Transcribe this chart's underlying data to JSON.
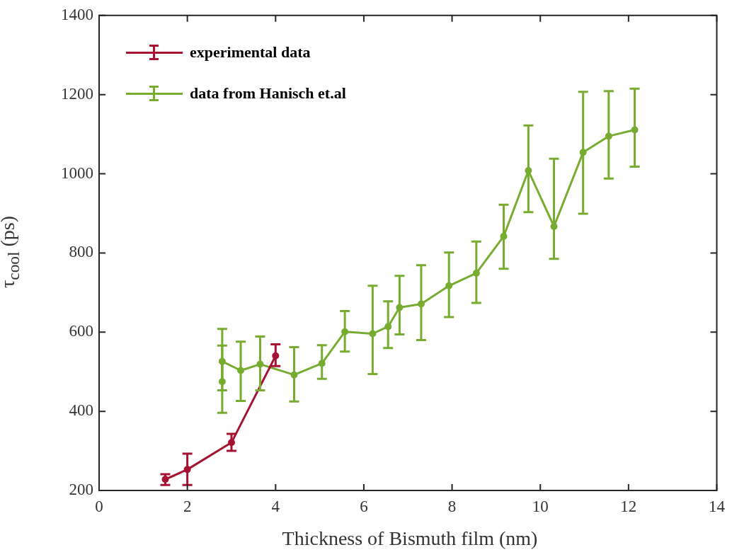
{
  "chart_data": {
    "type": "line",
    "xlabel": "Thickness of Bismuth film (nm)",
    "ylabel": "τ$_{cool}$ (ps)",
    "xlim": [
      0,
      14
    ],
    "xticks": [
      0,
      2,
      4,
      6,
      8,
      10,
      12,
      14
    ],
    "ylim": [
      200,
      1400
    ],
    "yticks": [
      200,
      400,
      600,
      800,
      1000,
      1200,
      1400
    ],
    "legend": "top left",
    "marker": "circle",
    "line_style": "solid",
    "series": [
      {
        "name": "experimental data",
        "color": "#a51232",
        "x": [
          1.5,
          2,
          3,
          4
        ],
        "values": [
          228,
          253,
          321,
          540
        ],
        "errors": [
          [
            214,
            241
          ],
          [
            214,
            293
          ],
          [
            300,
            343
          ],
          [
            514,
            569
          ]
        ]
      },
      {
        "name": "data from Hanisch et.al",
        "color": "#77ac30",
        "x": [
          2.79,
          2.79,
          3.21,
          3.65,
          4.42,
          5.05,
          5.57,
          6.2,
          6.55,
          6.81,
          7.3,
          7.93,
          8.55,
          9.17,
          9.73,
          10.31,
          10.97,
          11.55,
          12.14
        ],
        "values": [
          475,
          526,
          503,
          519,
          492,
          521,
          601,
          596,
          614,
          662,
          671,
          717,
          749,
          842,
          1008,
          867,
          1054,
          1095,
          1111
        ],
        "errors": [
          [
            453,
            566
          ],
          [
            396,
            608
          ],
          [
            426,
            576
          ],
          [
            453,
            589
          ],
          [
            425,
            562
          ],
          [
            482,
            567
          ],
          [
            551,
            653
          ],
          [
            494,
            717
          ],
          [
            560,
            678
          ],
          [
            594,
            742
          ],
          [
            580,
            769
          ],
          [
            638,
            801
          ],
          [
            674,
            829
          ],
          [
            760,
            922
          ],
          [
            903,
            1122
          ],
          [
            785,
            1038
          ],
          [
            899,
            1207
          ],
          [
            988,
            1209
          ],
          [
            1018,
            1215
          ]
        ]
      }
    ]
  }
}
